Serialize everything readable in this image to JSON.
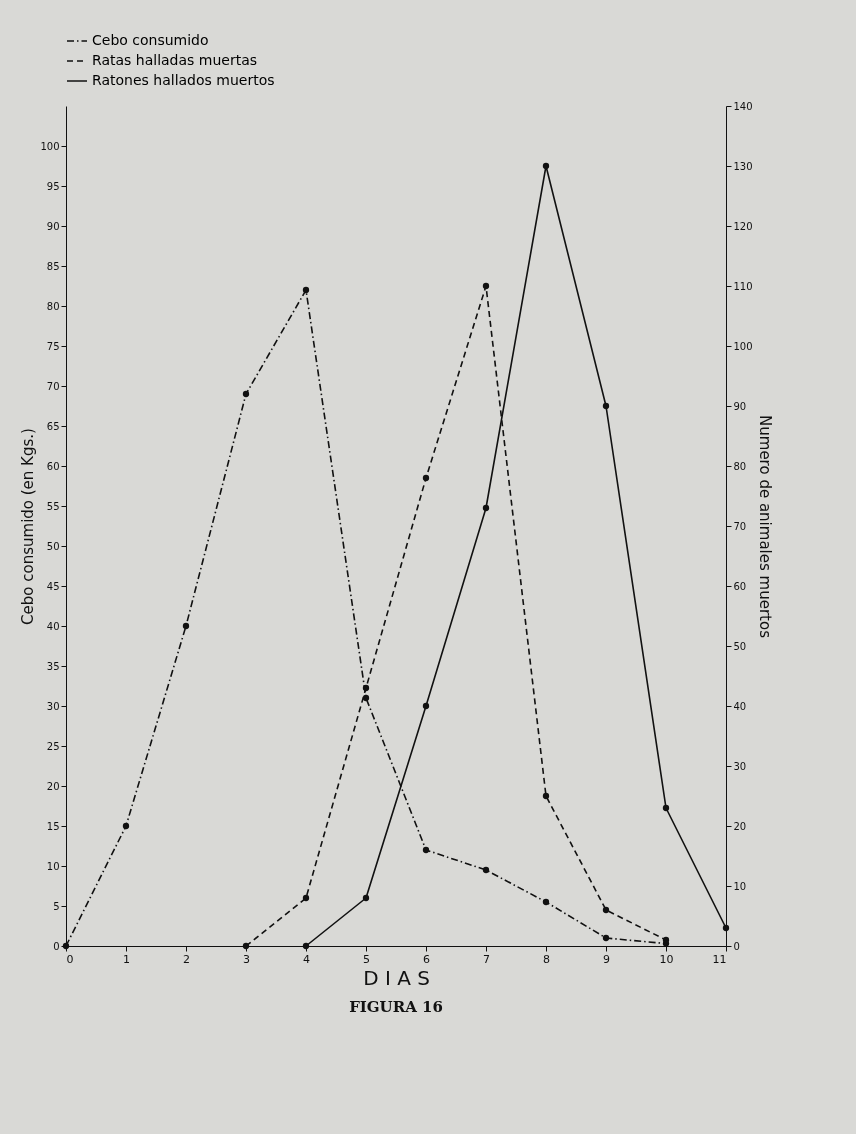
{
  "chart_data": {
    "type": "line",
    "xlabel": "D I A S",
    "ylabel": "Cebo consumido (en Kgs.)",
    "y2label": "Numero de animales muertos",
    "xlim": [
      0,
      11
    ],
    "xticks": [
      0,
      1,
      2,
      3,
      4,
      5,
      6,
      7,
      8,
      9,
      10,
      11
    ],
    "ylim": [
      0,
      105
    ],
    "yticks": [
      0,
      5,
      10,
      15,
      20,
      25,
      30,
      35,
      40,
      45,
      50,
      55,
      60,
      65,
      70,
      75,
      80,
      85,
      90,
      95,
      100
    ],
    "y2lim": [
      0,
      140
    ],
    "y2ticks": [
      0,
      10,
      20,
      30,
      40,
      50,
      60,
      70,
      80,
      90,
      100,
      110,
      120,
      130,
      140
    ],
    "grid": false,
    "legend": "top",
    "marker": "circle",
    "annotations": [
      "FIGURA 16"
    ],
    "series": [
      {
        "name": "Cebo consumido",
        "color": "#111111",
        "line_style": "dotted",
        "x": [
          0,
          1,
          2,
          3,
          4,
          5,
          6,
          7,
          8,
          9,
          10
        ],
        "values": [
          0,
          15,
          40,
          69,
          82,
          31,
          12,
          9.5,
          5.5,
          1,
          0.3
        ]
      },
      {
        "name": "Ratas halladas muertas",
        "color": "#111111",
        "line_style": "dashed",
        "axis": "y2",
        "x": [
          3,
          4,
          5,
          6,
          7,
          8,
          9,
          10
        ],
        "values": [
          0,
          8,
          43,
          78,
          110,
          25,
          6,
          1
        ]
      },
      {
        "name": "Ratones hallados muertos",
        "color": "#111111",
        "line_style": "solid",
        "axis": "y2",
        "x": [
          4,
          5,
          6,
          7,
          8,
          9,
          10,
          11
        ],
        "values": [
          0,
          8,
          40,
          73,
          130,
          90,
          23,
          3
        ]
      }
    ]
  }
}
